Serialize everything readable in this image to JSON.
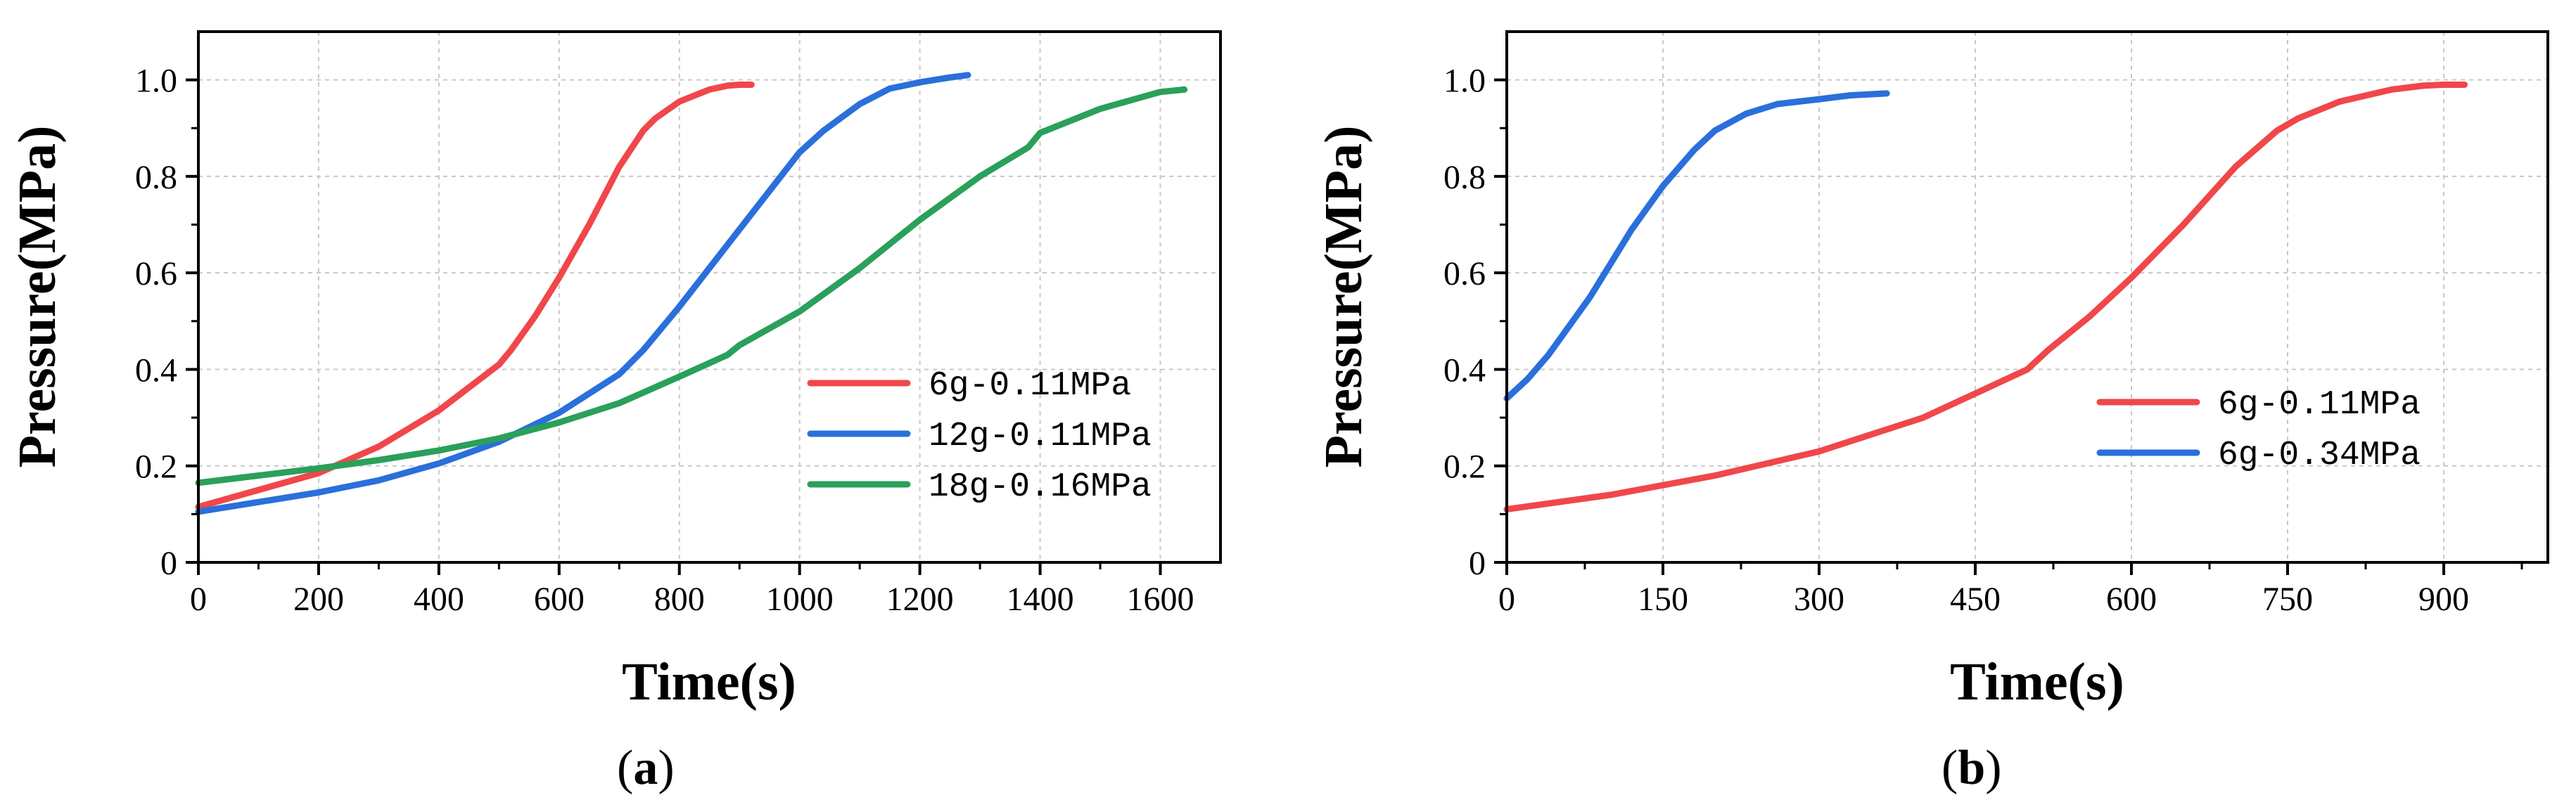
{
  "chart_data": [
    {
      "panel_label": "a",
      "type": "line",
      "xlabel": "Time(s)",
      "ylabel": "Pressure(MPa)",
      "xlim": [
        0,
        1700
      ],
      "ylim": [
        0,
        1.1
      ],
      "x_ticks": [
        0,
        200,
        400,
        600,
        800,
        1000,
        1200,
        1400,
        1600
      ],
      "y_ticks": [
        0,
        0.2,
        0.4,
        0.6,
        0.8,
        1.0
      ],
      "x_tick_labels": [
        "0",
        "200",
        "400",
        "600",
        "800",
        "1000",
        "1200",
        "1400",
        "1600"
      ],
      "y_tick_labels": [
        "0",
        "0.2",
        "0.4",
        "0.6",
        "0.8",
        "1.0"
      ],
      "grid": true,
      "legend_position": "center-right",
      "series": [
        {
          "name": "6g-0.11MPa",
          "color": "#f0474b",
          "x": [
            0,
            100,
            200,
            300,
            400,
            500,
            520,
            560,
            600,
            650,
            700,
            740,
            760,
            800,
            850,
            880,
            900,
            920
          ],
          "y": [
            0.115,
            0.15,
            0.185,
            0.24,
            0.315,
            0.41,
            0.44,
            0.51,
            0.59,
            0.7,
            0.82,
            0.895,
            0.92,
            0.955,
            0.98,
            0.988,
            0.99,
            0.99
          ]
        },
        {
          "name": "12g-0.11MPa",
          "color": "#2a6fdb",
          "x": [
            0,
            100,
            200,
            300,
            400,
            500,
            600,
            700,
            740,
            800,
            900,
            1000,
            1040,
            1100,
            1150,
            1200,
            1250,
            1280
          ],
          "y": [
            0.105,
            0.125,
            0.145,
            0.17,
            0.205,
            0.25,
            0.31,
            0.39,
            0.44,
            0.53,
            0.69,
            0.85,
            0.895,
            0.95,
            0.982,
            0.995,
            1.005,
            1.01
          ]
        },
        {
          "name": "18g-0.16MPa",
          "color": "#2aa05a",
          "x": [
            0,
            100,
            200,
            300,
            400,
            500,
            600,
            700,
            800,
            880,
            900,
            1000,
            1100,
            1200,
            1300,
            1380,
            1400,
            1500,
            1600,
            1640
          ],
          "y": [
            0.165,
            0.18,
            0.195,
            0.212,
            0.232,
            0.257,
            0.29,
            0.33,
            0.385,
            0.43,
            0.45,
            0.52,
            0.61,
            0.71,
            0.8,
            0.86,
            0.89,
            0.94,
            0.975,
            0.98
          ]
        }
      ]
    },
    {
      "panel_label": "b",
      "type": "line",
      "xlabel": "Time(s)",
      "ylabel": "Pressure(MPa)",
      "xlim": [
        0,
        1000
      ],
      "ylim": [
        0,
        1.1
      ],
      "x_ticks": [
        0,
        150,
        300,
        450,
        600,
        750,
        900
      ],
      "y_ticks": [
        0,
        0.2,
        0.4,
        0.6,
        0.8,
        1.0
      ],
      "x_tick_labels": [
        "0",
        "150",
        "300",
        "450",
        "600",
        "750",
        "900"
      ],
      "y_tick_labels": [
        "0",
        "0.2",
        "0.4",
        "0.6",
        "0.8",
        "1.0"
      ],
      "grid": true,
      "legend_position": "center-right",
      "series": [
        {
          "name": "6g-0.11MPa",
          "color": "#f0474b",
          "x": [
            0,
            100,
            200,
            300,
            400,
            500,
            520,
            560,
            600,
            650,
            700,
            740,
            760,
            800,
            850,
            880,
            900,
            920
          ],
          "y": [
            0.11,
            0.14,
            0.18,
            0.23,
            0.3,
            0.4,
            0.44,
            0.51,
            0.59,
            0.7,
            0.82,
            0.895,
            0.92,
            0.955,
            0.98,
            0.988,
            0.99,
            0.99
          ]
        },
        {
          "name": "6g-0.34MPa",
          "color": "#2a6fdb",
          "x": [
            0,
            20,
            40,
            60,
            80,
            100,
            120,
            150,
            180,
            200,
            230,
            260,
            300,
            330,
            365
          ],
          "y": [
            0.34,
            0.38,
            0.43,
            0.49,
            0.55,
            0.62,
            0.69,
            0.78,
            0.855,
            0.895,
            0.93,
            0.95,
            0.96,
            0.968,
            0.972
          ]
        }
      ]
    }
  ]
}
